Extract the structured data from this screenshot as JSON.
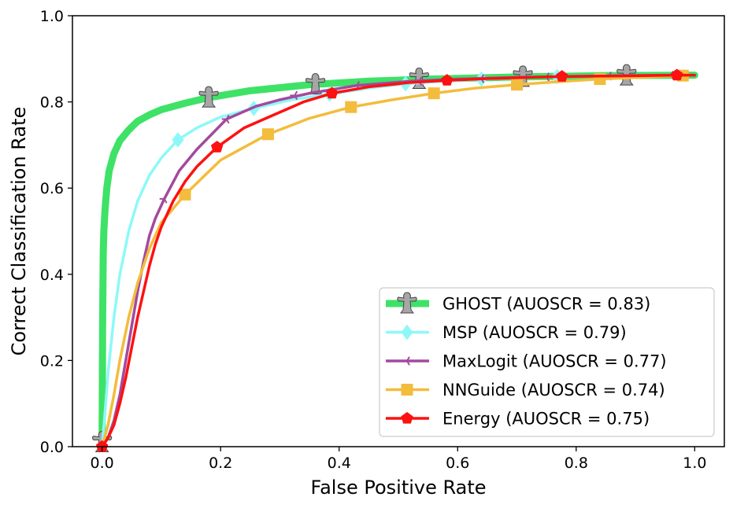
{
  "chart_data": {
    "type": "line",
    "title": "",
    "xlabel": "False Positive Rate",
    "ylabel": "Correct Classification Rate",
    "xlim": [
      -0.05,
      1.05
    ],
    "ylim": [
      0.0,
      1.0
    ],
    "xticks": [
      0.0,
      0.2,
      0.4,
      0.6,
      0.8,
      1.0
    ],
    "yticks": [
      0.0,
      0.2,
      0.4,
      0.6,
      0.8,
      1.0
    ],
    "xtick_labels": [
      "0.0",
      "0.2",
      "0.4",
      "0.6",
      "0.8",
      "1.0"
    ],
    "ytick_labels": [
      "0.0",
      "0.2",
      "0.4",
      "0.6",
      "0.8",
      "1.0"
    ],
    "grid": false,
    "legend_position": "bottom-right",
    "series": [
      {
        "name": "GHOST (AUOSCR = 0.83)",
        "color": "#3ee266",
        "marker": "ghost-icon",
        "line_width": "thick",
        "x": [
          0.0,
          0.0005,
          0.001,
          0.002,
          0.003,
          0.005,
          0.008,
          0.012,
          0.02,
          0.03,
          0.045,
          0.06,
          0.08,
          0.1,
          0.14,
          0.18,
          0.25,
          0.35,
          0.45,
          0.55,
          0.7,
          0.85,
          1.0
        ],
        "y": [
          0.0,
          0.15,
          0.3,
          0.45,
          0.5,
          0.55,
          0.6,
          0.64,
          0.68,
          0.71,
          0.735,
          0.755,
          0.77,
          0.782,
          0.797,
          0.81,
          0.826,
          0.84,
          0.848,
          0.853,
          0.858,
          0.861,
          0.862
        ],
        "marker_x": [
          0.0,
          0.18,
          0.36,
          0.535,
          0.71,
          0.885
        ],
        "marker_y": [
          0.01,
          0.81,
          0.84,
          0.853,
          0.858,
          0.861
        ]
      },
      {
        "name": "MSP (AUOSCR = 0.79)",
        "color": "#8ef8f8",
        "marker": "diamond-icon",
        "line_width": "medium",
        "x": [
          0.0,
          0.005,
          0.01,
          0.02,
          0.03,
          0.045,
          0.06,
          0.08,
          0.1,
          0.128,
          0.16,
          0.2,
          0.256,
          0.32,
          0.384,
          0.45,
          0.512,
          0.576,
          0.64,
          0.704,
          0.768,
          0.832,
          0.896,
          0.96,
          1.0
        ],
        "y": [
          0.0,
          0.08,
          0.17,
          0.3,
          0.4,
          0.5,
          0.57,
          0.63,
          0.67,
          0.712,
          0.74,
          0.765,
          0.785,
          0.805,
          0.818,
          0.832,
          0.842,
          0.848,
          0.853,
          0.857,
          0.859,
          0.86,
          0.861,
          0.862,
          0.862
        ],
        "marker_x": [
          0.128,
          0.256,
          0.384,
          0.512,
          0.64,
          0.768
        ],
        "marker_y": [
          0.712,
          0.785,
          0.818,
          0.842,
          0.853,
          0.859
        ]
      },
      {
        "name": "MaxLogit (AUOSCR = 0.77)",
        "color": "#a24a9e",
        "marker": "tri-left-icon",
        "line_width": "medium",
        "x": [
          0.0,
          0.01,
          0.02,
          0.03,
          0.04,
          0.05,
          0.06,
          0.07,
          0.08,
          0.09,
          0.105,
          0.13,
          0.16,
          0.21,
          0.26,
          0.3,
          0.35,
          0.43,
          0.52,
          0.6,
          0.7,
          0.79,
          0.88,
          0.96,
          1.0
        ],
        "y": [
          0.0,
          0.02,
          0.06,
          0.12,
          0.2,
          0.28,
          0.36,
          0.43,
          0.49,
          0.53,
          0.575,
          0.64,
          0.69,
          0.76,
          0.79,
          0.805,
          0.82,
          0.838,
          0.848,
          0.853,
          0.857,
          0.859,
          0.861,
          0.862,
          0.862
        ],
        "marker_x": [
          0.105,
          0.21,
          0.325,
          0.43,
          0.535,
          0.64,
          0.75,
          0.855,
          0.96
        ],
        "marker_y": [
          0.575,
          0.76,
          0.815,
          0.838,
          0.848,
          0.854,
          0.858,
          0.86,
          0.862
        ]
      },
      {
        "name": "NNGuide (AUOSCR = 0.74)",
        "color": "#f3bc3c",
        "marker": "square-icon",
        "line_width": "medium",
        "x": [
          0.0,
          0.01,
          0.02,
          0.03,
          0.045,
          0.06,
          0.08,
          0.1,
          0.14,
          0.2,
          0.28,
          0.35,
          0.42,
          0.49,
          0.56,
          0.63,
          0.7,
          0.77,
          0.84,
          0.91,
          0.98,
          1.0
        ],
        "y": [
          0.0,
          0.05,
          0.12,
          0.2,
          0.3,
          0.38,
          0.46,
          0.52,
          0.585,
          0.665,
          0.725,
          0.762,
          0.788,
          0.805,
          0.82,
          0.832,
          0.84,
          0.847,
          0.853,
          0.857,
          0.861,
          0.862
        ],
        "marker_x": [
          0.14,
          0.28,
          0.42,
          0.56,
          0.7,
          0.84,
          0.98
        ],
        "marker_y": [
          0.585,
          0.725,
          0.788,
          0.82,
          0.84,
          0.853,
          0.861
        ]
      },
      {
        "name": "Energy (AUOSCR = 0.75)",
        "color": "#fd1111",
        "marker": "pentagon-icon",
        "line_width": "medium",
        "x": [
          0.0,
          0.01,
          0.02,
          0.03,
          0.04,
          0.05,
          0.06,
          0.07,
          0.08,
          0.09,
          0.1,
          0.12,
          0.14,
          0.16,
          0.194,
          0.24,
          0.29,
          0.34,
          0.388,
          0.45,
          0.52,
          0.582,
          0.65,
          0.72,
          0.776,
          0.85,
          0.92,
          0.97,
          1.0
        ],
        "y": [
          0.0,
          0.02,
          0.05,
          0.1,
          0.16,
          0.23,
          0.3,
          0.36,
          0.42,
          0.47,
          0.51,
          0.57,
          0.615,
          0.65,
          0.695,
          0.74,
          0.77,
          0.8,
          0.82,
          0.835,
          0.845,
          0.85,
          0.854,
          0.857,
          0.859,
          0.86,
          0.861,
          0.862,
          0.862
        ],
        "marker_x": [
          0.0,
          0.194,
          0.388,
          0.582,
          0.776,
          0.97
        ],
        "marker_y": [
          0.0,
          0.695,
          0.82,
          0.85,
          0.859,
          0.862
        ]
      }
    ]
  }
}
